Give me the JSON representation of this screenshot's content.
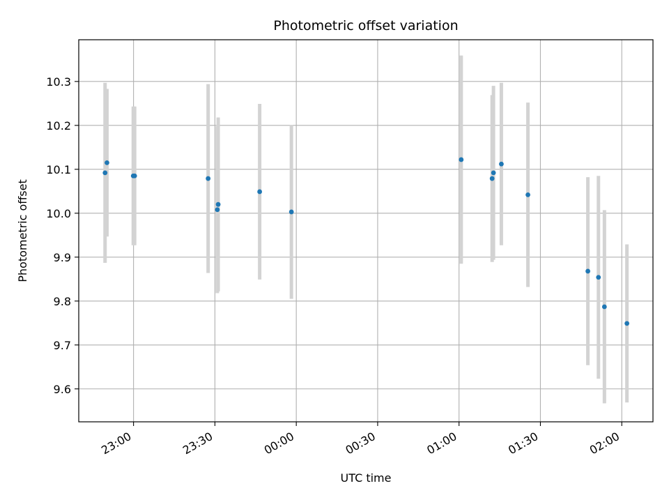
{
  "chart_data": {
    "type": "scatter",
    "title": "Photometric offset variation",
    "xlabel": "UTC time",
    "ylabel": "Photometric offset",
    "x_axis_type": "time",
    "x_tick_labels": [
      "23:00",
      "23:30",
      "00:00",
      "00:30",
      "01:00",
      "01:30",
      "02:00"
    ],
    "x_tick_minutes": [
      1380,
      1410,
      1440,
      1470,
      1500,
      1530,
      1560
    ],
    "xlim_minutes": [
      1359.8,
      1571.5
    ],
    "y_ticks": [
      9.6,
      9.7,
      9.8,
      9.9,
      10.0,
      10.1,
      10.2,
      10.3
    ],
    "ylim": [
      9.525,
      10.395
    ],
    "grid": true,
    "marker_color": "#1f77b4",
    "errorbar_color": "#d3d3d3",
    "points": [
      {
        "time": "22:49",
        "t": 1369.5,
        "y": 10.092,
        "err": 0.205
      },
      {
        "time": "22:50",
        "t": 1370.2,
        "y": 10.115,
        "err": 0.168
      },
      {
        "time": "23:00",
        "t": 1379.9,
        "y": 10.085,
        "err": 0.158
      },
      {
        "time": "23:00",
        "t": 1380.4,
        "y": 10.085,
        "err": 0.158
      },
      {
        "time": "23:27",
        "t": 1407.5,
        "y": 10.079,
        "err": 0.215
      },
      {
        "time": "23:31",
        "t": 1410.9,
        "y": 10.008,
        "err": 0.19
      },
      {
        "time": "23:31",
        "t": 1411.2,
        "y": 10.02,
        "err": 0.198
      },
      {
        "time": "23:46",
        "t": 1426.5,
        "y": 10.049,
        "err": 0.2
      },
      {
        "time": "23:58",
        "t": 1438.2,
        "y": 10.003,
        "err": 0.198
      },
      {
        "time": "01:01",
        "t": 1500.8,
        "y": 10.122,
        "err": 0.237
      },
      {
        "time": "01:12",
        "t": 1512.2,
        "y": 10.079,
        "err": 0.19
      },
      {
        "time": "01:13",
        "t": 1512.7,
        "y": 10.092,
        "err": 0.198
      },
      {
        "time": "01:15",
        "t": 1515.6,
        "y": 10.112,
        "err": 0.185
      },
      {
        "time": "01:25",
        "t": 1525.4,
        "y": 10.042,
        "err": 0.21
      },
      {
        "time": "01:47",
        "t": 1547.5,
        "y": 9.868,
        "err": 0.214
      },
      {
        "time": "01:51",
        "t": 1551.4,
        "y": 9.854,
        "err": 0.231
      },
      {
        "time": "01:54",
        "t": 1553.6,
        "y": 9.787,
        "err": 0.22
      },
      {
        "time": "02:02",
        "t": 1561.9,
        "y": 9.749,
        "err": 0.18
      }
    ]
  }
}
